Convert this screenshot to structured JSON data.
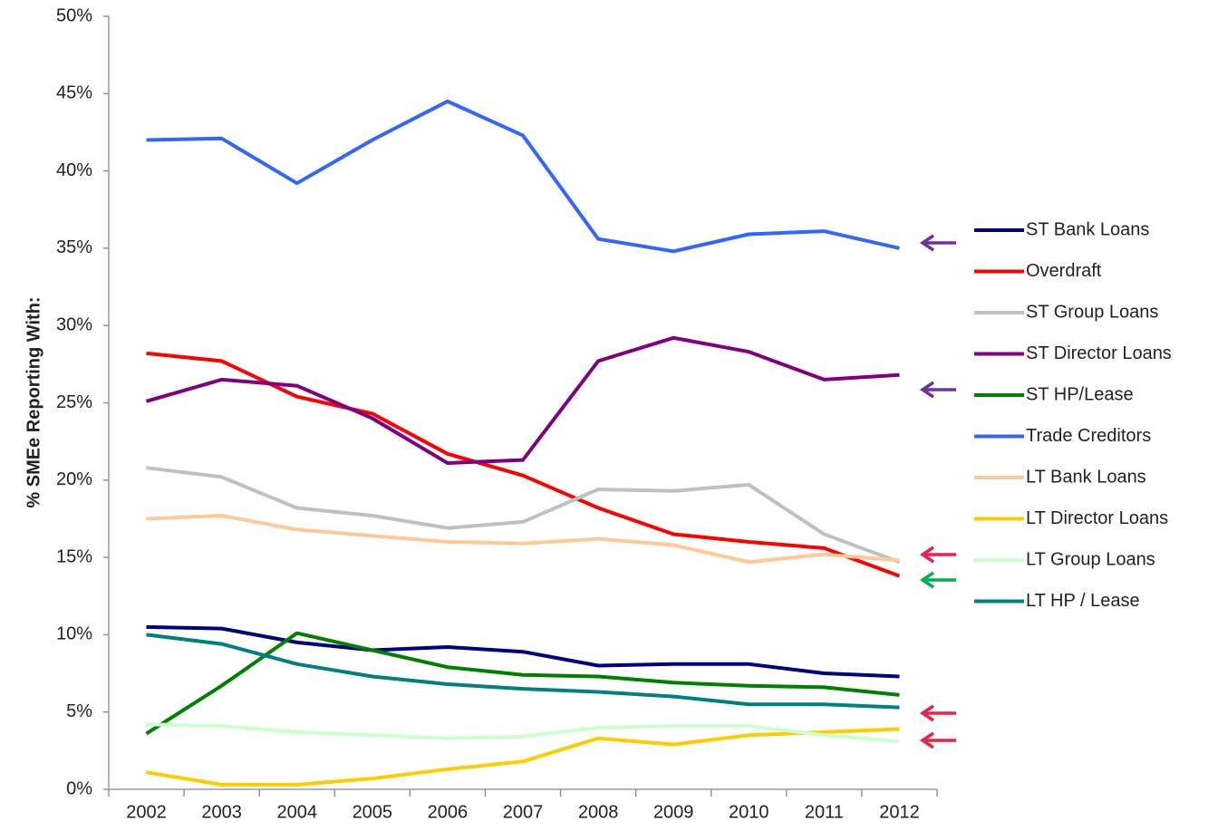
{
  "chart_data": {
    "type": "line",
    "y_label": "% SMEe Reporting With:",
    "categories": [
      "2002",
      "2003",
      "2004",
      "2005",
      "2006",
      "2007",
      "2008",
      "2009",
      "2010",
      "2011",
      "2012"
    ],
    "ylim": [
      0,
      50
    ],
    "yticks": [
      {
        "value": 0,
        "label": "0%"
      },
      {
        "value": 5,
        "label": "5%"
      },
      {
        "value": 10,
        "label": "10%"
      },
      {
        "value": 15,
        "label": "15%"
      },
      {
        "value": 20,
        "label": "20%"
      },
      {
        "value": 25,
        "label": "25%"
      },
      {
        "value": 30,
        "label": "30%"
      },
      {
        "value": 35,
        "label": "35%"
      },
      {
        "value": 40,
        "label": "40%"
      },
      {
        "value": 45,
        "label": "45%"
      },
      {
        "value": 50,
        "label": "50%"
      }
    ],
    "grid": false,
    "series": [
      {
        "name": "ST Bank Loans",
        "color": "#000080",
        "values": [
          10.5,
          10.4,
          9.5,
          9.0,
          9.2,
          8.9,
          8.0,
          8.1,
          8.1,
          7.5,
          7.3
        ]
      },
      {
        "name": "Overdraft",
        "color": "#ff0000",
        "values": [
          28.2,
          27.7,
          25.4,
          24.3,
          21.7,
          20.3,
          18.2,
          16.5,
          16.0,
          15.6,
          13.8
        ]
      },
      {
        "name": "ST Group Loans",
        "color": "#c0c0c0",
        "values": [
          20.8,
          20.2,
          18.2,
          17.7,
          16.9,
          17.3,
          19.4,
          19.3,
          19.7,
          16.5,
          14.7
        ]
      },
      {
        "name": "ST Director Loans",
        "color": "#800080",
        "values": [
          25.1,
          26.5,
          26.1,
          24.0,
          21.1,
          21.3,
          27.7,
          29.2,
          28.3,
          26.5,
          26.8
        ]
      },
      {
        "name": "ST HP/Lease",
        "color": "#008000",
        "values": [
          3.6,
          6.7,
          10.1,
          9.0,
          7.9,
          7.4,
          7.3,
          6.9,
          6.7,
          6.6,
          6.1
        ]
      },
      {
        "name": "Trade Creditors",
        "color": "#3366ff",
        "values": [
          42.0,
          42.1,
          39.2,
          42.0,
          44.5,
          42.3,
          35.6,
          34.8,
          35.9,
          36.1,
          35.0
        ]
      },
      {
        "name": "LT Bank Loans",
        "color": "#ffc896",
        "values": [
          17.5,
          17.7,
          16.8,
          16.4,
          16.0,
          15.9,
          16.2,
          15.8,
          14.7,
          15.2,
          14.8
        ]
      },
      {
        "name": "LT Director Loans",
        "color": "#ffcc00",
        "values": [
          1.1,
          0.3,
          0.3,
          0.7,
          1.3,
          1.8,
          3.3,
          2.9,
          3.5,
          3.7,
          3.9
        ]
      },
      {
        "name": "LT Group Loans",
        "color": "#ccffcc",
        "values": [
          4.2,
          4.1,
          3.7,
          3.5,
          3.3,
          3.4,
          4.0,
          4.1,
          4.1,
          3.5,
          3.1
        ]
      },
      {
        "name": "LT HP / Lease",
        "color": "#008080",
        "values": [
          10.0,
          9.4,
          8.1,
          7.3,
          6.8,
          6.5,
          6.3,
          6.0,
          5.5,
          5.5,
          5.3
        ]
      }
    ]
  }
}
